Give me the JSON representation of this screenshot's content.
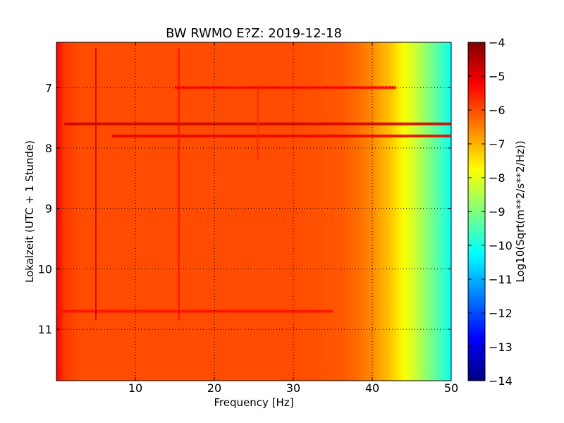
{
  "chart_data": {
    "type": "heatmap",
    "title": "BW RWMO E?Z: 2019-12-18",
    "xlabel": "Frequency [Hz]",
    "ylabel": "Lokalzeit (UTC + 1 Stunde)",
    "xlim": [
      0,
      50
    ],
    "ylim": [
      6.25,
      11.85
    ],
    "y_inverted": true,
    "x_ticks": [
      10,
      20,
      30,
      40,
      50
    ],
    "y_ticks": [
      7,
      8,
      9,
      10,
      11
    ],
    "grid": true,
    "colorbar": {
      "label": "Log10(Sqrt(m**2/s**2/Hz))",
      "min": -14,
      "max": -4,
      "ticks": [
        -4,
        -5,
        -6,
        -7,
        -8,
        -9,
        -10,
        -11,
        -12,
        -13,
        -14
      ],
      "colormap": "jet"
    },
    "spectral_profile": {
      "frequency": [
        0,
        1,
        3,
        10,
        20,
        30,
        36,
        38,
        40,
        41,
        42,
        43,
        44,
        45,
        46,
        47,
        48,
        49,
        50
      ],
      "level": [
        -5.2,
        -5.8,
        -6.0,
        -6.0,
        -6.0,
        -6.0,
        -6.1,
        -6.3,
        -6.6,
        -6.9,
        -7.1,
        -7.4,
        -7.8,
        -8.1,
        -8.5,
        -8.9,
        -9.3,
        -9.7,
        -10.2
      ]
    },
    "features": [
      {
        "kind": "horizontal_band",
        "time": 7.6,
        "level": -4.8,
        "freq_range": [
          1,
          50
        ]
      },
      {
        "kind": "horizontal_band",
        "time": 7.8,
        "level": -5.1,
        "freq_range": [
          7,
          50
        ]
      },
      {
        "kind": "horizontal_band",
        "time": 7.0,
        "level": -5.4,
        "freq_range": [
          15,
          43
        ]
      },
      {
        "kind": "horizontal_band",
        "time": 10.7,
        "level": -5.4,
        "freq_range": [
          0,
          35
        ]
      },
      {
        "kind": "vertical_line",
        "freq": 5,
        "level": -4.8,
        "time_range": [
          6.35,
          10.85
        ]
      },
      {
        "kind": "vertical_line",
        "freq": 15.5,
        "level": -5.3,
        "time_range": [
          6.35,
          10.85
        ]
      },
      {
        "kind": "vertical_line",
        "freq": 25.5,
        "level": -5.6,
        "time_range": [
          6.95,
          8.2
        ]
      }
    ]
  },
  "colors": {
    "colormap_stops": [
      "#00007f",
      "#0000ff",
      "#007fff",
      "#00ffff",
      "#7fff7f",
      "#ffff00",
      "#ff7f00",
      "#ff0000",
      "#7f0000"
    ]
  }
}
